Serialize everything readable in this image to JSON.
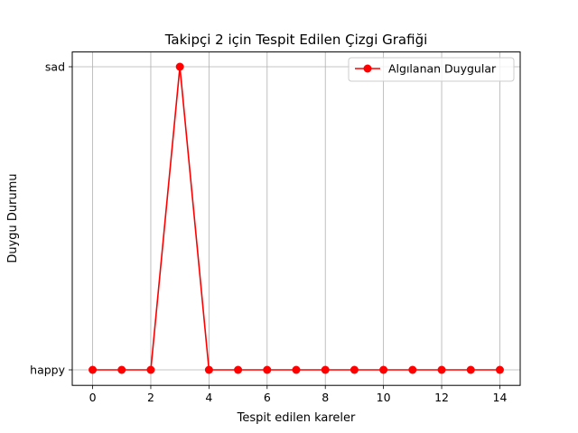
{
  "chart_data": {
    "type": "line",
    "title": "Takipçi 2 için Tespit Edilen Çizgi Grafiği",
    "xlabel": "Tespit edilen kareler",
    "ylabel": "Duygu Durumu",
    "x": [
      0,
      1,
      2,
      3,
      4,
      5,
      6,
      7,
      8,
      9,
      10,
      11,
      12,
      13,
      14
    ],
    "y_categories": [
      "happy",
      "sad"
    ],
    "series": [
      {
        "name": "Algılanan Duygular",
        "color": "#ff0000",
        "marker": "circle",
        "values": [
          "happy",
          "happy",
          "happy",
          "sad",
          "happy",
          "happy",
          "happy",
          "happy",
          "happy",
          "happy",
          "happy",
          "happy",
          "happy",
          "happy",
          "happy"
        ]
      }
    ],
    "xlim": [
      -0.7,
      14.7
    ],
    "xticks": [
      0,
      2,
      4,
      6,
      8,
      10,
      12,
      14
    ],
    "grid": true,
    "legend_position": "top-right"
  }
}
